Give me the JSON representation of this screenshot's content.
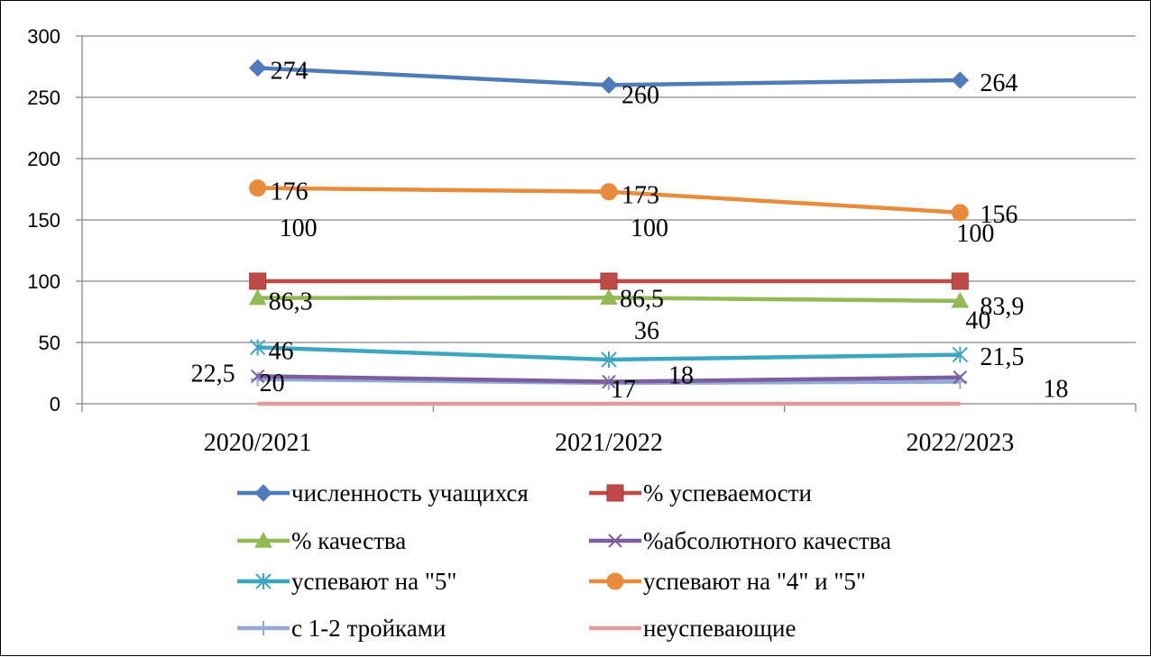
{
  "chart_data": {
    "type": "line",
    "categories": [
      "2020/2021",
      "2021/2022",
      "2022/2023"
    ],
    "ylim": [
      0,
      300
    ],
    "yticks": [
      "0",
      "50",
      "100",
      "150",
      "200",
      "250",
      "300"
    ],
    "grid": true,
    "legend_position": "bottom",
    "series": [
      {
        "name": "численность учащихся",
        "values": [
          274,
          260,
          264
        ],
        "labels": [
          "274",
          "260",
          "264"
        ],
        "color": "#4F7CB8",
        "marker": "diamond"
      },
      {
        "name": "% успеваемости",
        "values": [
          100,
          100,
          100
        ],
        "labels": [
          "100",
          "100",
          "100"
        ],
        "color": "#BE4B48",
        "marker": "square"
      },
      {
        "name": "% качества",
        "values": [
          86.3,
          86.5,
          83.9
        ],
        "labels": [
          "86,3",
          "86,5",
          "83,9"
        ],
        "color": "#93B956",
        "marker": "triangle"
      },
      {
        "name": "%абсолютного качества",
        "values": [
          22.5,
          18,
          21.5
        ],
        "labels": [
          "22,5",
          "18",
          "21,5"
        ],
        "color": "#7B5E9E",
        "marker": "x"
      },
      {
        "name": "успевают на \"5\"",
        "values": [
          46,
          36,
          40
        ],
        "labels": [
          "46",
          "36",
          "40"
        ],
        "color": "#3EA6C0",
        "marker": "asterisk"
      },
      {
        "name": "успевают на \"4\" и \"5\"",
        "values": [
          176,
          173,
          156
        ],
        "labels": [
          "176",
          "173",
          "156"
        ],
        "color": "#E78B3C",
        "marker": "circle"
      },
      {
        "name": "с 1-2 тройками",
        "values": [
          20,
          17,
          18
        ],
        "labels": [
          "20",
          "17",
          "18"
        ],
        "color": "#93A9D6",
        "marker": "plus"
      },
      {
        "name": "неуспевающие",
        "values": [
          0,
          0,
          0
        ],
        "labels": [],
        "color": "#E09A97",
        "marker": "none"
      }
    ]
  }
}
